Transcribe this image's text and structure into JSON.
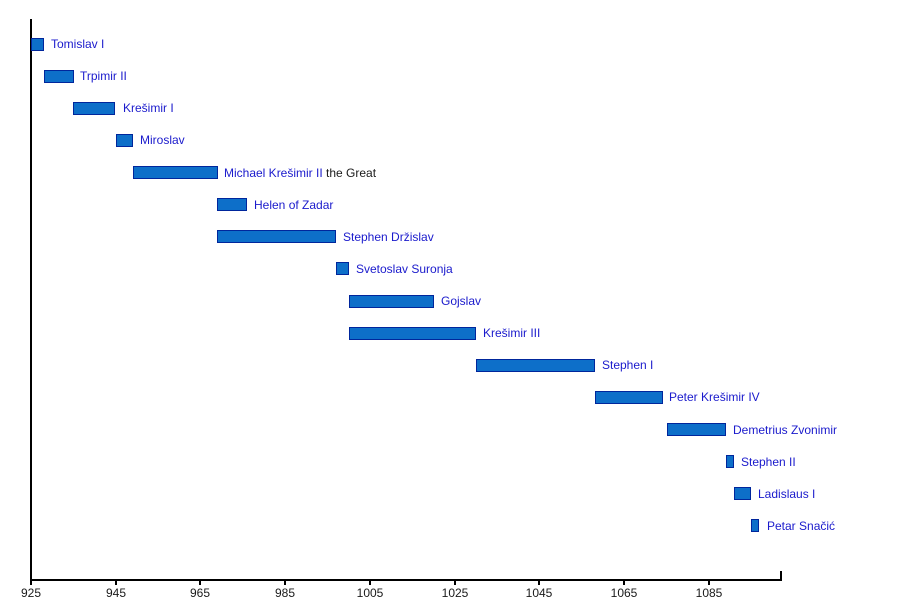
{
  "chart_data": {
    "type": "bar",
    "subtype": "timeline-gantt",
    "title": "",
    "xlabel": "",
    "ylabel": "",
    "background": "#ffffff",
    "grid": false,
    "legend": false,
    "x_axis": {
      "min": 925,
      "max": 1102,
      "tick_interval": 20,
      "tick_labels": [
        "925",
        "945",
        "965",
        "985",
        "1005",
        "1025",
        "1045",
        "1065",
        "1085"
      ],
      "tick_years": [
        925,
        945,
        965,
        985,
        1005,
        1025,
        1045,
        1065,
        1085
      ]
    },
    "rulers": [
      {
        "name": "Tomislav I",
        "start": 925,
        "end": 928
      },
      {
        "name": "Trpimir II",
        "start": 928,
        "end": 935
      },
      {
        "name": "Krešimir I",
        "start": 935,
        "end": 945
      },
      {
        "name": "Miroslav",
        "start": 945,
        "end": 949
      },
      {
        "name": "Michael Krešimir II",
        "suffix": " the Great",
        "start": 949,
        "end": 969
      },
      {
        "name": "Helen of Zadar",
        "start": 969,
        "end": 976
      },
      {
        "name": "Stephen Držislav",
        "start": 969,
        "end": 997
      },
      {
        "name": "Svetoslav Suronja",
        "start": 997,
        "end": 1000
      },
      {
        "name": "Gojslav",
        "start": 1000,
        "end": 1020
      },
      {
        "name": "Krešimir III",
        "start": 1000,
        "end": 1030
      },
      {
        "name": "Stephen I",
        "start": 1030,
        "end": 1058
      },
      {
        "name": "Peter Krešimir IV",
        "start": 1058,
        "end": 1074
      },
      {
        "name": "Demetrius Zvonimir",
        "start": 1075,
        "end": 1089
      },
      {
        "name": "Stephen II",
        "start": 1089,
        "end": 1091
      },
      {
        "name": "Ladislaus I",
        "start": 1091,
        "end": 1095
      },
      {
        "name": "Petar Snačić",
        "start": 1095,
        "end": 1097
      }
    ]
  },
  "colors": {
    "bar_fill": "#0d6fc9",
    "bar_border": "#00269c",
    "label_link": "#1a1acc",
    "label_plain": "#1a1a1a",
    "axis": "#000000",
    "tick_label": "#1a1a1a",
    "background": "#ffffff"
  }
}
